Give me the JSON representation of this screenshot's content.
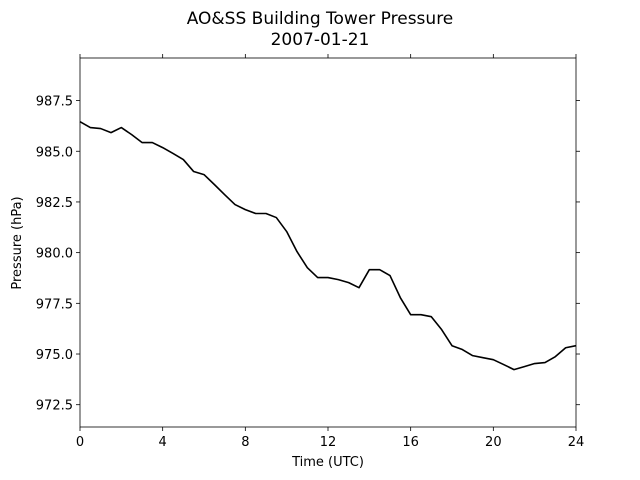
{
  "chart_data": {
    "type": "line",
    "title": "AO&SS Building Tower Pressure",
    "subtitle": "2007-01-21",
    "x_label": "Time (UTC)",
    "y_label": "Pressure (hPa)",
    "x": [
      0,
      0.5,
      1,
      1.5,
      2,
      2.5,
      3,
      3.5,
      4,
      4.5,
      5,
      5.5,
      6,
      6.5,
      7,
      7.5,
      8,
      8.5,
      9,
      9.5,
      10,
      10.5,
      11,
      11.5,
      12,
      12.5,
      13,
      13.5,
      14,
      14.5,
      15,
      15.5,
      16,
      16.5,
      17,
      17.5,
      18,
      18.5,
      19,
      19.5,
      20,
      20.5,
      21,
      21.5,
      22,
      22.5,
      23,
      23.5,
      24
    ],
    "series": [
      {
        "color": "#000000",
        "values": [
          986.46,
          986.17,
          986.12,
          985.92,
          986.17,
          985.82,
          985.43,
          985.43,
          985.18,
          984.89,
          984.59,
          984.0,
          983.85,
          983.36,
          982.86,
          982.37,
          982.12,
          981.93,
          981.93,
          981.73,
          981.04,
          980.05,
          979.26,
          978.77,
          978.77,
          978.67,
          978.52,
          978.27,
          979.16,
          979.16,
          978.87,
          977.78,
          976.94,
          976.94,
          976.84,
          976.2,
          975.41,
          975.22,
          974.92,
          974.82,
          974.72,
          974.48,
          974.23,
          974.38,
          974.53,
          974.58,
          974.87,
          975.31,
          975.41
        ]
      }
    ],
    "xlim": [
      0,
      24
    ],
    "xticks": [
      0,
      4,
      8,
      12,
      16,
      20,
      24
    ],
    "ylim": [
      971.4,
      989.6
    ],
    "yticks": [
      {
        "value": 972.5,
        "label": "972.5"
      },
      {
        "value": 975,
        "label": "975.0"
      },
      {
        "value": 977.5,
        "label": "977.5"
      },
      {
        "value": 980,
        "label": "980.0"
      },
      {
        "value": 982.5,
        "label": "982.5"
      },
      {
        "value": 985,
        "label": "985.0"
      },
      {
        "value": 987.5,
        "label": "987.5"
      }
    ],
    "grid": false
  }
}
